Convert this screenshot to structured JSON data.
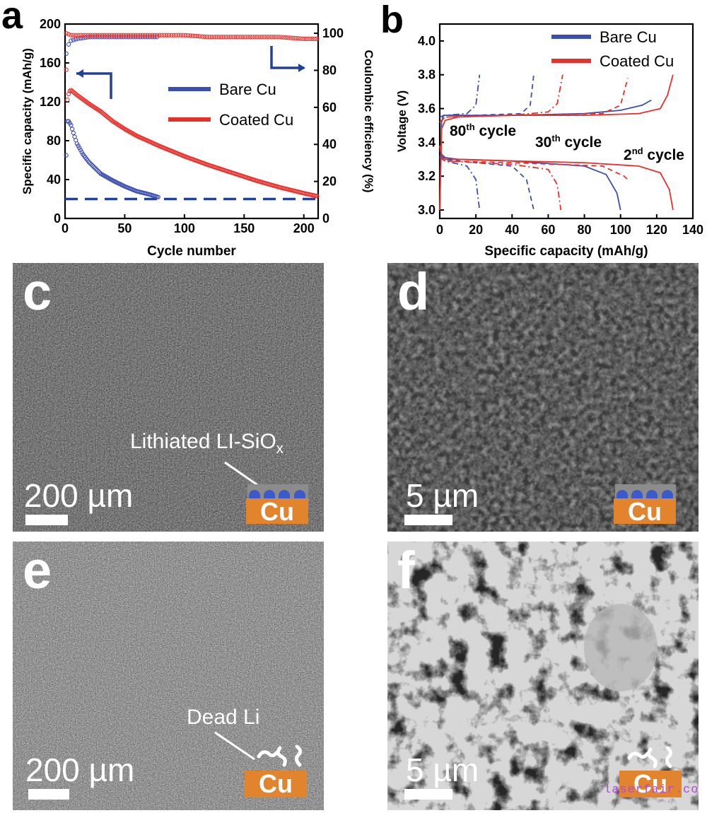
{
  "panels": {
    "a": "a",
    "b": "b",
    "c": "c",
    "d": "d",
    "e": "e",
    "f": "f"
  },
  "chart_data": [
    {
      "type": "scatter",
      "panel": "a",
      "xlabel": "Cycle number",
      "ylabel": "Specific capacity (mAh/g)",
      "y2label": "Coulombic efficiency (%)",
      "xlim": [
        0,
        212
      ],
      "ylim": [
        0,
        200
      ],
      "y2lim": [
        0,
        105
      ],
      "xticks": [
        "0",
        "50",
        "100",
        "150",
        "200"
      ],
      "yticks": [
        "0",
        "40",
        "80",
        "120",
        "160",
        "200"
      ],
      "y2ticks": [
        "0",
        "20",
        "40",
        "60",
        "80",
        "100"
      ],
      "series": [
        {
          "name": "Bare Cu",
          "color": "#3b4fb0",
          "kind": "capacity",
          "x": [
            1,
            2,
            3,
            5,
            8,
            10,
            15,
            20,
            30,
            40,
            50,
            60,
            70,
            78
          ],
          "y": [
            65,
            100,
            100,
            96,
            84,
            77,
            66,
            58,
            46,
            39,
            33,
            28,
            25,
            22
          ]
        },
        {
          "name": "Coated Cu",
          "color": "#e8302b",
          "kind": "capacity",
          "x": [
            1,
            2,
            3,
            4,
            5,
            10,
            20,
            30,
            40,
            50,
            60,
            80,
            100,
            120,
            140,
            160,
            180,
            200,
            211
          ],
          "y": [
            153,
            122,
            128,
            131,
            132,
            127,
            118,
            110,
            100,
            92,
            85,
            74,
            64,
            55,
            47,
            39,
            32,
            26,
            23
          ]
        },
        {
          "name": "Bare Cu",
          "color": "#3b4fb0",
          "kind": "efficiency",
          "x": [
            1,
            2,
            3,
            5,
            10,
            20,
            30,
            40,
            50,
            60,
            70,
            78
          ],
          "y": [
            89,
            85,
            94,
            96,
            97,
            98,
            98,
            98,
            98,
            98,
            98,
            98
          ]
        },
        {
          "name": "Coated Cu",
          "color": "#e8302b",
          "kind": "efficiency",
          "x": [
            1,
            5,
            10,
            20,
            40,
            60,
            80,
            100,
            120,
            140,
            160,
            180,
            200,
            211
          ],
          "y": [
            100,
            99,
            99,
            99,
            99,
            99,
            99,
            99,
            98,
            98,
            98,
            98,
            97,
            97
          ]
        }
      ],
      "reference_line": {
        "y": 20,
        "color": "#23409a"
      }
    },
    {
      "type": "line",
      "panel": "b",
      "xlabel": "Specific capacity (mAh/g)",
      "ylabel": "Voltage (V)",
      "xlim": [
        0,
        140
      ],
      "ylim": [
        2.95,
        4.1
      ],
      "xticks": [
        "0",
        "20",
        "40",
        "60",
        "80",
        "100",
        "120",
        "140"
      ],
      "yticks": [
        "3.0",
        "3.2",
        "3.4",
        "3.6",
        "3.8",
        "4.0"
      ],
      "legend": [
        "Bare Cu",
        "Coated Cu"
      ],
      "annotations": [
        {
          "base": "80",
          "sup": "th",
          "rest": " cycle"
        },
        {
          "base": "30",
          "sup": "th",
          "rest": " cycle"
        },
        {
          "base": "2",
          "sup": "nd",
          "rest": " cycle"
        }
      ],
      "series": [
        {
          "name": "Bare Cu",
          "color": "#3b4fb0",
          "cycle": "2",
          "dash": "solid",
          "charge": {
            "x": [
              0,
              1,
              2,
              10,
              40,
              80,
              100,
              112,
              117
            ],
            "y": [
              3.0,
              3.52,
              3.56,
              3.56,
              3.56,
              3.57,
              3.59,
              3.62,
              3.65
            ]
          },
          "discharge": {
            "x": [
              0,
              1,
              3,
              10,
              40,
              80,
              92,
              98,
              100
            ],
            "y": [
              3.38,
              3.33,
              3.31,
              3.3,
              3.29,
              3.26,
              3.21,
              3.1,
              3.0
            ]
          }
        },
        {
          "name": "Coated Cu",
          "color": "#e8302b",
          "cycle": "2",
          "dash": "solid",
          "charge": {
            "x": [
              0,
              1,
              3,
              10,
              40,
              80,
              110,
              122,
              126,
              129
            ],
            "y": [
              3.0,
              3.48,
              3.53,
              3.55,
              3.56,
              3.56,
              3.57,
              3.6,
              3.68,
              3.8
            ]
          },
          "discharge": {
            "x": [
              0,
              1,
              3,
              10,
              40,
              80,
              110,
              122,
              127,
              129
            ],
            "y": [
              3.38,
              3.32,
              3.3,
              3.3,
              3.29,
              3.28,
              3.26,
              3.22,
              3.12,
              3.0
            ]
          }
        },
        {
          "name": "Bare Cu",
          "color": "#3b4fb0",
          "cycle": "30",
          "dash": "dashed",
          "charge": {
            "x": [
              0,
              3,
              20,
              45,
              50,
              52
            ],
            "y": [
              3.55,
              3.56,
              3.56,
              3.57,
              3.62,
              3.8
            ]
          },
          "discharge": {
            "x": [
              0,
              3,
              20,
              40,
              48,
              52
            ],
            "y": [
              3.32,
              3.3,
              3.28,
              3.26,
              3.18,
              3.0
            ]
          }
        },
        {
          "name": "Coated Cu",
          "color": "#e8302b",
          "cycle": "30",
          "dash": "dashed",
          "charge": {
            "x": [
              0,
              3,
              40,
              90,
              100,
              104
            ],
            "y": [
              3.52,
              3.55,
              3.56,
              3.57,
              3.62,
              3.78
            ]
          },
          "discharge": {
            "x": [
              0,
              3,
              40,
              90,
              102,
              105
            ],
            "y": [
              3.31,
              3.29,
              3.28,
              3.26,
              3.2,
              3.17
            ]
          }
        },
        {
          "name": "Bare Cu",
          "color": "#3b4fb0",
          "cycle": "80",
          "dash": "dashdot",
          "charge": {
            "x": [
              0,
              3,
              15,
              20,
              22
            ],
            "y": [
              3.55,
              3.56,
              3.57,
              3.62,
              3.8
            ]
          },
          "discharge": {
            "x": [
              0,
              3,
              15,
              20,
              22
            ],
            "y": [
              3.31,
              3.29,
              3.26,
              3.18,
              3.0
            ]
          }
        },
        {
          "name": "Coated Cu",
          "color": "#e8302b",
          "cycle": "80",
          "dash": "dashdot",
          "charge": {
            "x": [
              0,
              3,
              40,
              60,
              65,
              68
            ],
            "y": [
              3.52,
              3.55,
              3.56,
              3.58,
              3.63,
              3.8
            ]
          },
          "discharge": {
            "x": [
              0,
              3,
              40,
              60,
              65,
              67
            ],
            "y": [
              3.31,
              3.29,
              3.27,
              3.24,
              3.15,
              3.0
            ]
          }
        }
      ]
    }
  ],
  "sem": {
    "c": {
      "scale": "200 µm",
      "annotation_base": "Lithiated LI-SiO",
      "annotation_sub": "x",
      "cu": "Cu"
    },
    "d": {
      "scale": "5 µm",
      "cu": "Cu"
    },
    "e": {
      "scale": "200 µm",
      "annotation": "Dead Li",
      "cu": "Cu"
    },
    "f": {
      "scale": "5 µm",
      "cu": "Cu"
    }
  },
  "watermark": "laserfair.com",
  "colors": {
    "bare": "#3b4fb0",
    "coated": "#e8302b",
    "axis": "#000000",
    "cu": "#e2842d"
  }
}
